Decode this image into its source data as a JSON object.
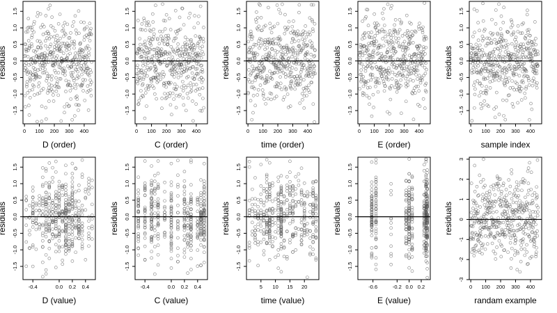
{
  "figure": {
    "colors": {
      "point": "#555555",
      "axis": "#000000",
      "background": "#ffffff",
      "zero_line": "#000000"
    }
  },
  "chart_data": [
    {
      "type": "scatter",
      "title": "",
      "xlabel": "D (order)",
      "ylabel": "residuals",
      "xlim": [
        -10,
        475
      ],
      "ylim": [
        -1.9,
        1.8
      ],
      "xticks": [
        0,
        100,
        200,
        300,
        400
      ],
      "xtick_labels": [
        "0",
        "100",
        "200",
        "300",
        "400"
      ],
      "yticks": [
        -1.5,
        -1.0,
        -0.5,
        0.0,
        0.5,
        1.0,
        1.5
      ],
      "ytick_labels": [
        "-1.5",
        "-1.0",
        "-0.5",
        "0.0",
        "0.5",
        "1.0",
        "1.5"
      ],
      "hline": 0,
      "n_points": 450,
      "x_distribution": "index",
      "x_range": [
        0,
        450
      ],
      "y_sd": 0.65
    },
    {
      "type": "scatter",
      "title": "",
      "xlabel": "C (order)",
      "ylabel": "residuals",
      "xlim": [
        -10,
        475
      ],
      "ylim": [
        -1.9,
        1.8
      ],
      "xticks": [
        0,
        100,
        200,
        300,
        400
      ],
      "xtick_labels": [
        "0",
        "100",
        "200",
        "300",
        "400"
      ],
      "yticks": [
        -1.5,
        -1.0,
        -0.5,
        0.0,
        0.5,
        1.0,
        1.5
      ],
      "ytick_labels": [
        "-1.5",
        "-1.0",
        "-0.5",
        "0.0",
        "0.5",
        "1.0",
        "1.5"
      ],
      "hline": 0,
      "n_points": 450,
      "x_distribution": "index",
      "x_range": [
        0,
        450
      ],
      "y_sd": 0.65
    },
    {
      "type": "scatter",
      "title": "",
      "xlabel": "time (order)",
      "ylabel": "residuals",
      "xlim": [
        -10,
        475
      ],
      "ylim": [
        -1.9,
        1.8
      ],
      "xticks": [
        0,
        100,
        200,
        300,
        400
      ],
      "xtick_labels": [
        "0",
        "100",
        "200",
        "300",
        "400"
      ],
      "yticks": [
        -1.5,
        -1.0,
        -0.5,
        0.0,
        0.5,
        1.0,
        1.5
      ],
      "ytick_labels": [
        "-1.5",
        "-1.0",
        "-0.5",
        "0.0",
        "0.5",
        "1.0",
        "1.5"
      ],
      "hline": 0,
      "n_points": 450,
      "x_distribution": "index",
      "x_range": [
        0,
        450
      ],
      "y_sd": 0.65
    },
    {
      "type": "scatter",
      "title": "",
      "xlabel": "E (order)",
      "ylabel": "residuals",
      "xlim": [
        -10,
        475
      ],
      "ylim": [
        -1.9,
        1.8
      ],
      "xticks": [
        0,
        100,
        200,
        300,
        400
      ],
      "xtick_labels": [
        "0",
        "100",
        "200",
        "300",
        "400"
      ],
      "yticks": [
        -1.5,
        -1.0,
        -0.5,
        0.0,
        0.5,
        1.0,
        1.5
      ],
      "ytick_labels": [
        "-1.5",
        "-1.0",
        "-0.5",
        "0.0",
        "0.5",
        "1.0",
        "1.5"
      ],
      "hline": 0,
      "n_points": 450,
      "x_distribution": "index",
      "x_range": [
        0,
        450
      ],
      "y_sd": 0.65
    },
    {
      "type": "scatter",
      "title": "",
      "xlabel": "sample index",
      "ylabel": "residuals",
      "xlim": [
        -10,
        475
      ],
      "ylim": [
        -1.9,
        1.8
      ],
      "xticks": [
        0,
        100,
        200,
        300,
        400
      ],
      "xtick_labels": [
        "0",
        "100",
        "200",
        "300",
        "400"
      ],
      "yticks": [
        -1.5,
        -1.0,
        -0.5,
        0.0,
        0.5,
        1.0,
        1.5
      ],
      "ytick_labels": [
        "-1.5",
        "-1.0",
        "-0.5",
        "0.0",
        "0.5",
        "1.0",
        "1.5"
      ],
      "hline": 0,
      "n_points": 450,
      "x_distribution": "index",
      "x_range": [
        0,
        450
      ],
      "y_sd": 0.65
    },
    {
      "type": "scatter",
      "title": "",
      "xlabel": "D (value)",
      "ylabel": "residuals",
      "xlim": [
        -0.55,
        0.55
      ],
      "ylim": [
        -1.9,
        1.8
      ],
      "xticks": [
        -0.4,
        0.0,
        0.2,
        0.4
      ],
      "xtick_labels": [
        "-0.4",
        "0.0",
        "0.2",
        "0.4"
      ],
      "yticks": [
        -1.5,
        -1.0,
        -0.5,
        0.0,
        0.5,
        1.0,
        1.5
      ],
      "ytick_labels": [
        "-1.5",
        "-1.0",
        "-0.5",
        "0.0",
        "0.5",
        "1.0",
        "1.5"
      ],
      "hline": 0,
      "n_points": 450,
      "x_distribution": "discrete",
      "x_levels": [
        -0.5,
        -0.45,
        -0.4,
        -0.35,
        -0.3,
        -0.25,
        -0.2,
        -0.15,
        -0.1,
        -0.05,
        0.0,
        0.05,
        0.1,
        0.15,
        0.2,
        0.25,
        0.3,
        0.35,
        0.4,
        0.45,
        0.5
      ],
      "level_weights": [
        1,
        1,
        2,
        1,
        2,
        2,
        3,
        3,
        3,
        3,
        4,
        3,
        5,
        3,
        3,
        2,
        2,
        2,
        1,
        1,
        1
      ],
      "y_sd": 0.65
    },
    {
      "type": "scatter",
      "title": "",
      "xlabel": "C (value)",
      "ylabel": "residuals",
      "xlim": [
        -0.55,
        0.55
      ],
      "ylim": [
        -1.9,
        1.8
      ],
      "xticks": [
        -0.4,
        0.0,
        0.2,
        0.4
      ],
      "xtick_labels": [
        "-0.4",
        "0.0",
        "0.2",
        "0.4"
      ],
      "yticks": [
        -1.5,
        -1.0,
        -0.5,
        0.0,
        0.5,
        1.0,
        1.5
      ],
      "ytick_labels": [
        "-1.5",
        "-1.0",
        "-0.5",
        "0.0",
        "0.5",
        "1.0",
        "1.5"
      ],
      "hline": 0,
      "n_points": 450,
      "x_distribution": "discrete",
      "x_levels": [
        -0.5,
        -0.4,
        -0.3,
        -0.25,
        -0.2,
        -0.1,
        0.0,
        0.1,
        0.2,
        0.25,
        0.3,
        0.4,
        0.45,
        0.5
      ],
      "level_weights": [
        3,
        3,
        4,
        2,
        3,
        2,
        3,
        2,
        3,
        2,
        4,
        2,
        3,
        4
      ],
      "y_sd": 0.65
    },
    {
      "type": "scatter",
      "title": "",
      "xlabel": "time (value)",
      "ylabel": "residuals",
      "xlim": [
        0,
        25
      ],
      "ylim": [
        -1.9,
        1.8
      ],
      "xticks": [
        5,
        10,
        15,
        20
      ],
      "xtick_labels": [
        "5",
        "10",
        "15",
        "20"
      ],
      "yticks": [
        -1.5,
        -1.0,
        -0.5,
        0.0,
        0.5,
        1.0,
        1.5
      ],
      "ytick_labels": [
        "-1.5",
        "-1.0",
        "-0.5",
        "0.0",
        "0.5",
        "1.0",
        "1.5"
      ],
      "hline": 0,
      "n_points": 450,
      "x_distribution": "discrete",
      "x_levels": [
        1,
        2,
        3,
        4,
        5,
        6,
        7,
        8,
        9,
        10,
        11,
        12,
        13,
        14,
        15,
        16,
        17,
        18,
        19,
        20,
        21,
        22,
        23,
        24
      ],
      "level_weights": [
        1,
        1,
        1,
        1,
        1,
        2,
        2,
        3,
        1,
        1,
        2,
        4,
        1,
        1,
        2,
        3,
        1,
        1,
        2,
        2,
        1,
        1,
        2,
        3
      ],
      "y_sd": 0.65
    },
    {
      "type": "scatter",
      "title": "",
      "xlabel": "E (value)",
      "ylabel": "residuals",
      "xlim": [
        -0.85,
        0.35
      ],
      "ylim": [
        -1.9,
        1.8
      ],
      "xticks": [
        -0.6,
        -0.2,
        0.0,
        0.2
      ],
      "xtick_labels": [
        "-0.6",
        "-0.2",
        "0.0",
        "0.2"
      ],
      "yticks": [
        -1.5,
        -1.0,
        -0.5,
        0.0,
        0.5,
        1.0,
        1.5
      ],
      "ytick_labels": [
        "-1.5",
        "-1.0",
        "-0.5",
        "0.0",
        "0.5",
        "1.0",
        "1.5"
      ],
      "hline": 0,
      "n_points": 450,
      "x_distribution": "discrete",
      "x_levels": [
        -0.62,
        -0.55,
        -0.3,
        -0.05,
        0.0,
        0.05,
        0.25,
        0.28,
        0.3
      ],
      "level_weights": [
        4,
        3,
        1,
        3,
        5,
        3,
        4,
        8,
        6
      ],
      "y_sd": 0.65
    },
    {
      "type": "scatter",
      "title": "",
      "xlabel": "randam example",
      "ylabel": "residuals",
      "xlim": [
        -10,
        475
      ],
      "ylim": [
        -3.0,
        3.1
      ],
      "xticks": [
        0,
        100,
        200,
        300,
        400
      ],
      "xtick_labels": [
        "0",
        "100",
        "200",
        "300",
        "400"
      ],
      "yticks": [
        -3,
        -2,
        -1,
        0,
        1,
        2,
        3
      ],
      "ytick_labels": [
        "-3",
        "-2",
        "-1",
        "0",
        "1",
        "2",
        "3"
      ],
      "hline": 0,
      "n_points": 450,
      "x_distribution": "index",
      "x_range": [
        0,
        450
      ],
      "y_sd": 1.0
    }
  ]
}
